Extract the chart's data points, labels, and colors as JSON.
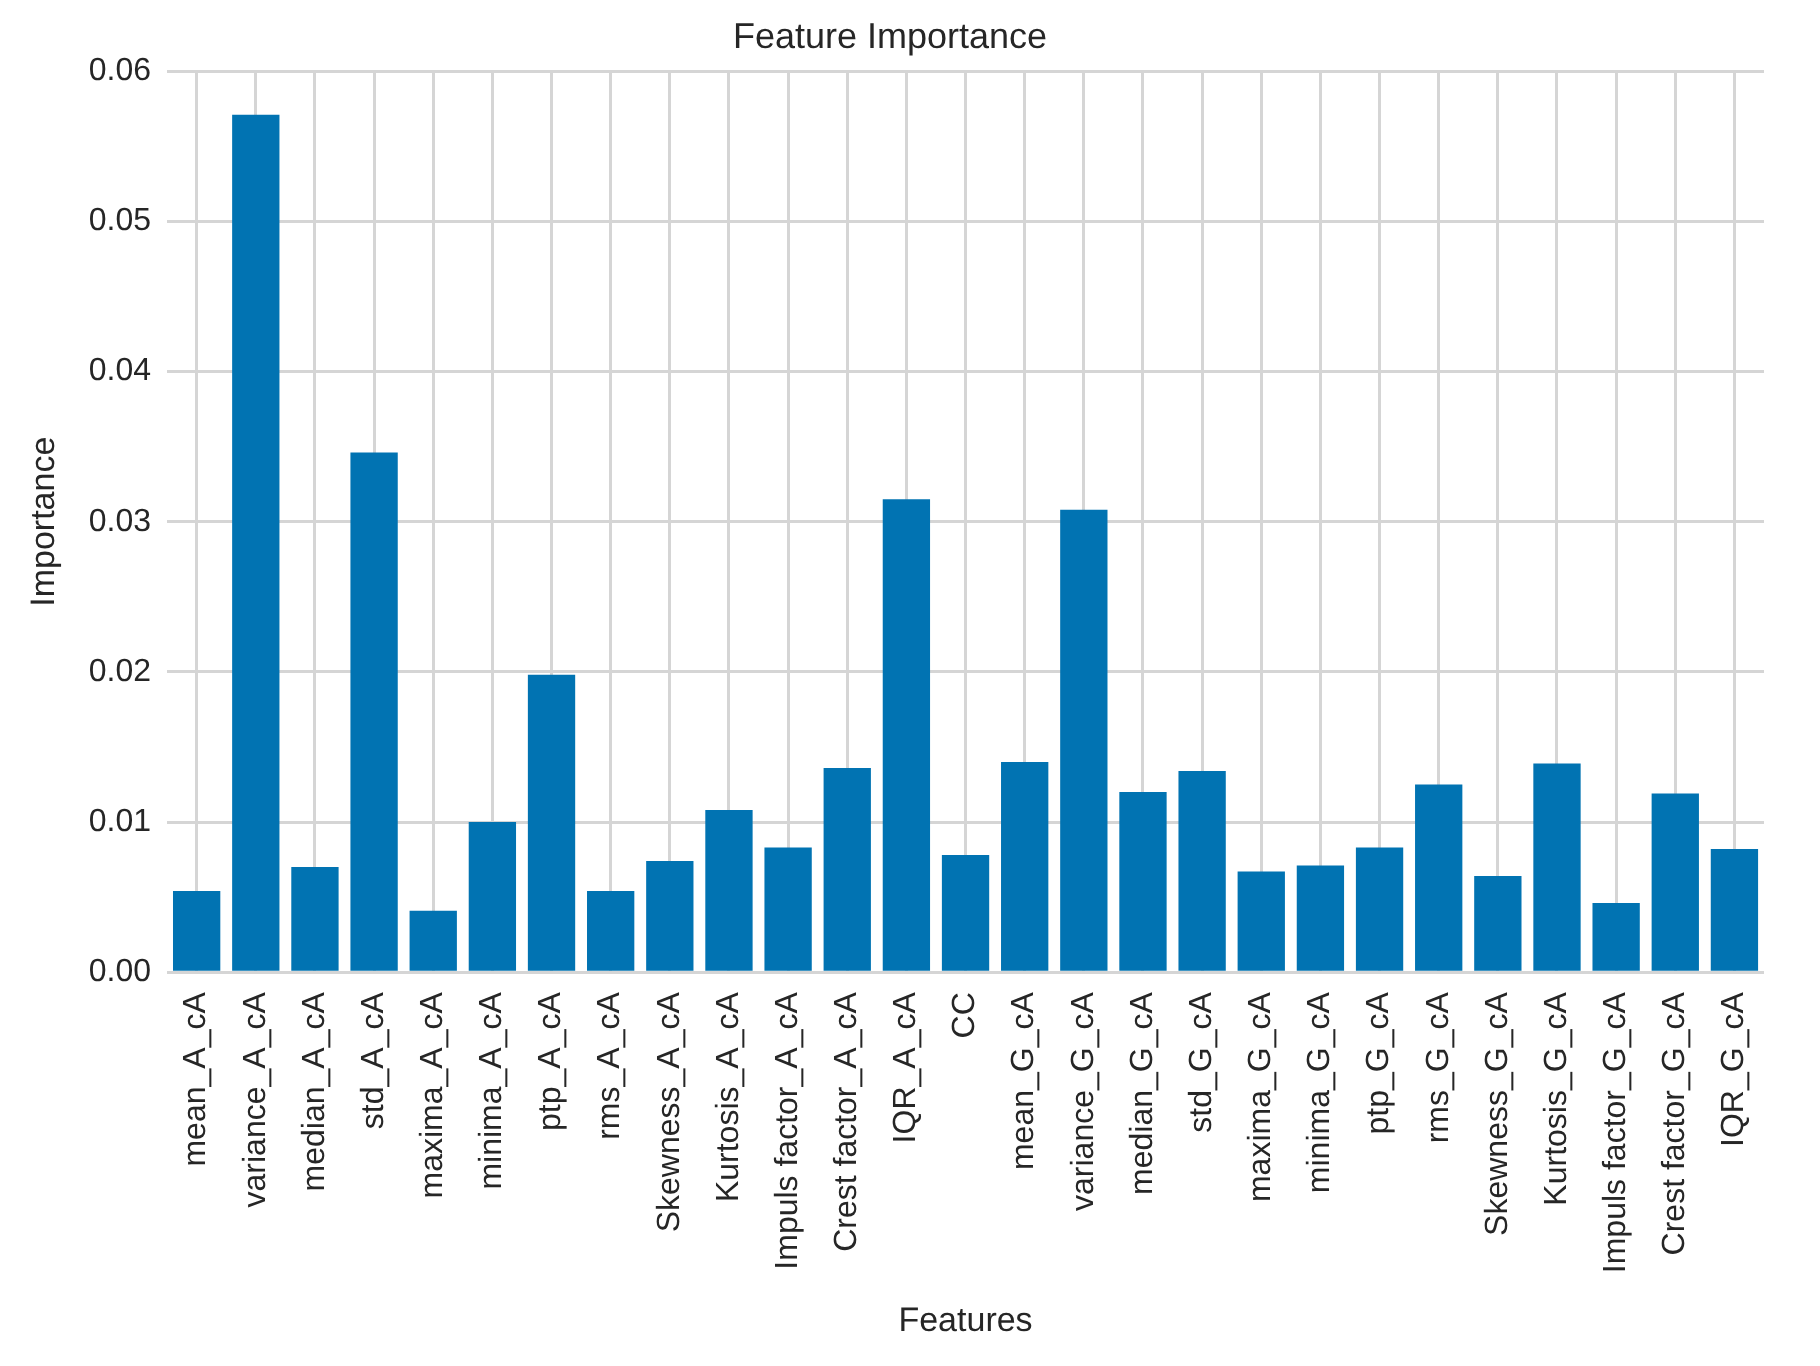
{
  "chart_data": {
    "type": "bar",
    "title": "Feature Importance",
    "xlabel": "Features",
    "ylabel": "Importance",
    "categories": [
      "mean_A_cA",
      "variance_A_cA",
      "median_A_cA",
      "std_A_cA",
      "maxima_A_cA",
      "minima_A_cA",
      "ptp_A_cA",
      "rms_A_cA",
      "Skewness_A_cA",
      "Kurtosis_A_cA",
      "Impuls factor_A_cA",
      "Crest factor_A_cA",
      "IQR_A_cA",
      "CC",
      "mean_G_cA",
      "variance_G_cA",
      "median_G_cA",
      "std_G_cA",
      "maxima_G_cA",
      "minima_G_cA",
      "ptp_G_cA",
      "rms_G_cA",
      "Skewness_G_cA",
      "Kurtosis_G_cA",
      "Impuls factor_G_cA",
      "Crest factor_G_cA",
      "IQR_G_cA"
    ],
    "values": [
      0.0054,
      0.0571,
      0.007,
      0.0346,
      0.0041,
      0.01,
      0.0198,
      0.0054,
      0.0074,
      0.0108,
      0.0083,
      0.0136,
      0.0315,
      0.0078,
      0.014,
      0.0308,
      0.012,
      0.0134,
      0.0067,
      0.0071,
      0.0083,
      0.0125,
      0.0064,
      0.0139,
      0.0046,
      0.0119,
      0.0082
    ],
    "color": "#0173b2",
    "ylim": [
      0,
      0.06
    ],
    "yticks": [
      {
        "value": 0,
        "label": "0.00"
      },
      {
        "value": 0.01,
        "label": "0.01"
      },
      {
        "value": 0.02,
        "label": "0.02"
      },
      {
        "value": 0.03,
        "label": "0.03"
      },
      {
        "value": 0.04,
        "label": "0.04"
      },
      {
        "value": 0.05,
        "label": "0.05"
      },
      {
        "value": 0.06,
        "label": "0.06"
      }
    ],
    "grid": true
  }
}
